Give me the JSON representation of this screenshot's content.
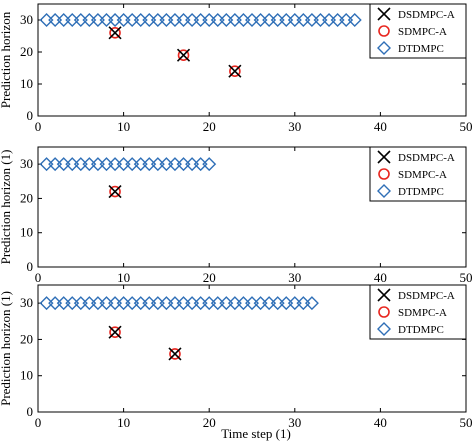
{
  "figure": {
    "xlabel_shared": "Time step (1)"
  },
  "colors": {
    "dsdmpc": "#000000",
    "sdmpc": "#e8261f",
    "dtdmpc": "#2f6fb7",
    "axes": "#000000",
    "background": "#ffffff"
  },
  "chart_data": [
    {
      "type": "scatter",
      "title": "",
      "xlabel": "",
      "ylabel": "Prediction horizon",
      "xlim": [
        0,
        50
      ],
      "ylim": [
        0,
        35
      ],
      "xticks": [
        0,
        10,
        20,
        30,
        40,
        50
      ],
      "yticks": [
        0,
        10,
        20,
        30
      ],
      "grid": false,
      "legend": "top-right",
      "series": [
        {
          "name": "DSDMPC-A",
          "marker": "x",
          "x": [
            9,
            17,
            23
          ],
          "y": [
            26,
            19,
            14
          ]
        },
        {
          "name": "SDMPC-A",
          "marker": "o",
          "x": [
            9,
            17,
            23
          ],
          "y": [
            26,
            19,
            14
          ]
        },
        {
          "name": "DTDMPC",
          "marker": "diamond",
          "x": [
            1,
            2,
            3,
            4,
            5,
            6,
            7,
            8,
            9,
            10,
            11,
            12,
            13,
            14,
            15,
            16,
            17,
            18,
            19,
            20,
            21,
            22,
            23,
            24,
            25,
            26,
            27,
            28,
            29,
            30,
            31,
            32,
            33,
            34,
            35,
            36,
            37
          ],
          "y": [
            30,
            30,
            30,
            30,
            30,
            30,
            30,
            30,
            30,
            30,
            30,
            30,
            30,
            30,
            30,
            30,
            30,
            30,
            30,
            30,
            30,
            30,
            30,
            30,
            30,
            30,
            30,
            30,
            30,
            30,
            30,
            30,
            30,
            30,
            30,
            30,
            30
          ]
        }
      ]
    },
    {
      "type": "scatter",
      "title": "",
      "xlabel": "",
      "ylabel": "Prediction horizon (1)",
      "xlim": [
        0,
        50
      ],
      "ylim": [
        0,
        35
      ],
      "xticks": [
        0,
        10,
        20,
        30,
        40,
        50
      ],
      "yticks": [
        0,
        10,
        20,
        30
      ],
      "grid": false,
      "legend": "top-right",
      "series": [
        {
          "name": "DSDMPC-A",
          "marker": "x",
          "x": [
            9
          ],
          "y": [
            22
          ]
        },
        {
          "name": "SDMPC-A",
          "marker": "o",
          "x": [
            9
          ],
          "y": [
            22
          ]
        },
        {
          "name": "DTDMPC",
          "marker": "diamond",
          "x": [
            1,
            2,
            3,
            4,
            5,
            6,
            7,
            8,
            9,
            10,
            11,
            12,
            13,
            14,
            15,
            16,
            17,
            18,
            19,
            20
          ],
          "y": [
            30,
            30,
            30,
            30,
            30,
            30,
            30,
            30,
            30,
            30,
            30,
            30,
            30,
            30,
            30,
            30,
            30,
            30,
            30,
            30
          ]
        }
      ]
    },
    {
      "type": "scatter",
      "title": "",
      "xlabel": "Time step (1)",
      "ylabel": "Prediction horizon (1)",
      "xlim": [
        0,
        50
      ],
      "ylim": [
        0,
        35
      ],
      "xticks": [
        0,
        10,
        20,
        30,
        40,
        50
      ],
      "yticks": [
        0,
        10,
        20,
        30
      ],
      "grid": false,
      "legend": "top-right",
      "series": [
        {
          "name": "DSDMPC-A",
          "marker": "x",
          "x": [
            9,
            16
          ],
          "y": [
            22,
            16
          ]
        },
        {
          "name": "SDMPC-A",
          "marker": "o",
          "x": [
            9,
            16
          ],
          "y": [
            22,
            16
          ]
        },
        {
          "name": "DTDMPC",
          "marker": "diamond",
          "x": [
            1,
            2,
            3,
            4,
            5,
            6,
            7,
            8,
            9,
            10,
            11,
            12,
            13,
            14,
            15,
            16,
            17,
            18,
            19,
            20,
            21,
            22,
            23,
            24,
            25,
            26,
            27,
            28,
            29,
            30,
            31,
            32
          ],
          "y": [
            30,
            30,
            30,
            30,
            30,
            30,
            30,
            30,
            30,
            30,
            30,
            30,
            30,
            30,
            30,
            30,
            30,
            30,
            30,
            30,
            30,
            30,
            30,
            30,
            30,
            30,
            30,
            30,
            30,
            30,
            30,
            30
          ]
        }
      ]
    }
  ]
}
